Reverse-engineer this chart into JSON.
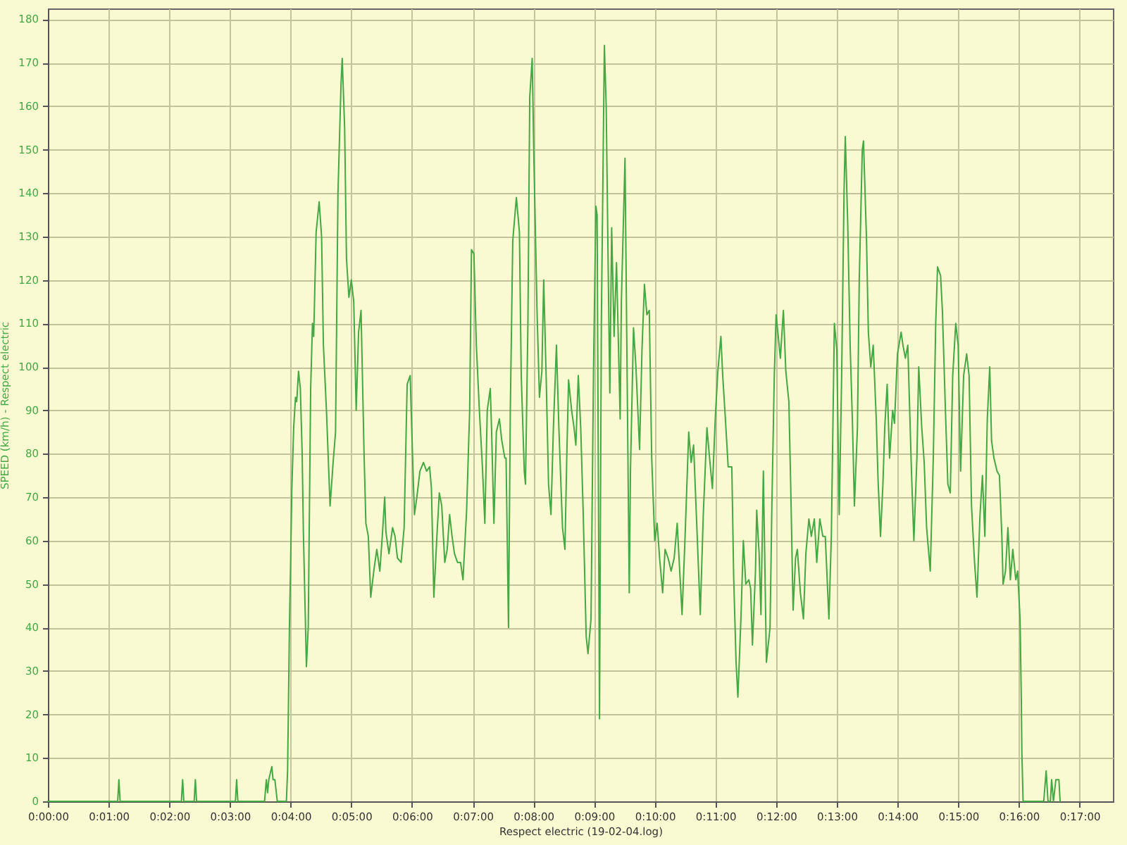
{
  "chart_data": {
    "type": "line",
    "xlabel": "Respect electric (19-02-04.log)",
    "ylabel": "SPEED (km/h) - Respect electric",
    "x": [
      0,
      1.15,
      1.17,
      1.19,
      2.2,
      2.22,
      2.24,
      2.41,
      2.43,
      2.45,
      3.09,
      3.11,
      3.13,
      3.57,
      3.6,
      3.62,
      3.64,
      3.69,
      3.71,
      3.74,
      3.78,
      3.93,
      3.95,
      3.98,
      4.0,
      4.02,
      4.05,
      4.08,
      4.1,
      4.13,
      4.16,
      4.19,
      4.21,
      4.26,
      4.29,
      4.33,
      4.36,
      4.38,
      4.42,
      4.47,
      4.51,
      4.54,
      4.59,
      4.65,
      4.7,
      4.74,
      4.78,
      4.83,
      4.85,
      4.89,
      4.92,
      4.96,
      5.0,
      5.04,
      5.08,
      5.12,
      5.16,
      5.21,
      5.24,
      5.28,
      5.32,
      5.37,
      5.42,
      5.47,
      5.51,
      5.55,
      5.57,
      5.62,
      5.68,
      5.72,
      5.76,
      5.82,
      5.87,
      5.92,
      5.97,
      6.01,
      6.04,
      6.08,
      6.13,
      6.19,
      6.24,
      6.29,
      6.32,
      6.36,
      6.41,
      6.45,
      6.49,
      6.54,
      6.58,
      6.62,
      6.66,
      6.7,
      6.75,
      6.8,
      6.84,
      6.9,
      6.95,
      6.98,
      7.02,
      7.06,
      7.11,
      7.16,
      7.2,
      7.24,
      7.29,
      7.31,
      7.35,
      7.39,
      7.44,
      7.48,
      7.53,
      7.55,
      7.59,
      7.62,
      7.66,
      7.72,
      7.77,
      7.8,
      7.85,
      7.87,
      7.91,
      7.94,
      7.98,
      8.01,
      8.06,
      8.1,
      8.14,
      8.17,
      8.21,
      8.25,
      8.29,
      8.33,
      8.38,
      8.42,
      8.48,
      8.52,
      8.55,
      8.58,
      8.63,
      8.67,
      8.7,
      8.74,
      8.78,
      8.82,
      8.87,
      8.9,
      8.95,
      8.99,
      9.03,
      9.05,
      9.09,
      9.12,
      9.17,
      9.2,
      9.24,
      9.26,
      9.29,
      9.33,
      9.37,
      9.43,
      9.45,
      9.51,
      9.54,
      9.58,
      9.6,
      9.65,
      9.69,
      9.75,
      9.79,
      9.83,
      9.87,
      9.91,
      9.95,
      10.0,
      10.04,
      10.08,
      10.13,
      10.17,
      10.22,
      10.27,
      10.32,
      10.37,
      10.4,
      10.45,
      10.5,
      10.56,
      10.6,
      10.64,
      10.7,
      10.75,
      10.8,
      10.86,
      10.91,
      10.95,
      11.0,
      11.04,
      11.09,
      11.12,
      11.16,
      11.21,
      11.27,
      11.3,
      11.34,
      11.37,
      11.42,
      11.46,
      11.5,
      11.55,
      11.58,
      11.61,
      11.66,
      11.68,
      11.72,
      11.75,
      11.79,
      11.84,
      11.9,
      11.93,
      11.97,
      12.0,
      12.07,
      12.12,
      12.16,
      12.21,
      12.24,
      12.28,
      12.32,
      12.35,
      12.4,
      12.45,
      12.49,
      12.54,
      12.58,
      12.63,
      12.67,
      12.72,
      12.77,
      12.81,
      12.87,
      12.91,
      12.96,
      13.0,
      13.04,
      13.08,
      13.12,
      13.14,
      13.18,
      13.22,
      13.26,
      13.29,
      13.34,
      13.37,
      13.42,
      13.44,
      13.49,
      13.52,
      13.56,
      13.6,
      13.65,
      13.68,
      13.72,
      13.76,
      13.79,
      13.83,
      13.87,
      13.92,
      13.95,
      14.0,
      14.06,
      14.09,
      14.13,
      14.17,
      14.23,
      14.27,
      14.32,
      14.35,
      14.4,
      14.44,
      14.48,
      14.54,
      14.59,
      14.63,
      14.66,
      14.71,
      14.74,
      14.79,
      14.83,
      14.87,
      14.91,
      14.96,
      15.0,
      15.04,
      15.09,
      15.14,
      15.18,
      15.22,
      15.27,
      15.31,
      15.36,
      15.4,
      15.44,
      15.48,
      15.52,
      15.55,
      15.59,
      15.64,
      15.68,
      15.72,
      15.74,
      15.78,
      15.82,
      15.86,
      15.9,
      15.95,
      15.98,
      16.02,
      16.04,
      16.05,
      16.07,
      16.41,
      16.45,
      16.48,
      16.52,
      16.54,
      16.57,
      16.61,
      16.66,
      16.68
    ],
    "series": [
      {
        "color": "#45a845",
        "values": [
          0,
          0,
          5,
          0,
          0,
          5,
          0,
          0,
          5,
          0,
          0,
          5,
          0,
          0,
          5,
          2,
          5,
          8,
          5,
          5,
          0,
          0,
          7,
          40,
          55,
          72,
          86,
          93,
          92,
          99,
          95,
          80,
          62,
          31,
          40,
          95,
          110,
          107,
          131,
          138,
          130,
          105,
          90,
          68,
          78,
          85,
          140,
          165,
          171,
          155,
          125,
          116,
          120,
          115,
          90,
          108,
          113,
          80,
          64,
          61,
          47,
          53,
          58,
          53,
          61,
          70,
          62,
          57,
          63,
          61,
          56,
          55,
          63,
          96,
          98,
          79,
          66,
          70,
          76,
          78,
          76,
          77,
          72,
          47,
          61,
          71,
          68,
          55,
          58,
          66,
          61,
          57,
          55,
          55,
          51,
          67,
          90,
          127,
          126,
          105,
          90,
          77,
          64,
          90,
          95,
          86,
          64,
          85,
          88,
          83,
          79,
          79,
          40,
          90,
          129,
          139,
          131,
          98,
          76,
          73,
          110,
          162,
          171,
          147,
          113,
          93,
          99,
          120,
          98,
          73,
          66,
          86,
          105,
          86,
          63,
          58,
          79,
          97,
          90,
          86,
          82,
          98,
          86,
          67,
          38,
          34,
          42,
          98,
          137,
          135,
          19,
          110,
          174,
          160,
          115,
          94,
          132,
          107,
          124,
          88,
          115,
          148,
          105,
          48,
          76,
          109,
          100,
          81,
          104,
          119,
          112,
          113,
          79,
          60,
          64,
          56,
          48,
          58,
          56,
          53,
          56,
          64,
          56,
          43,
          61,
          85,
          78,
          82,
          61,
          43,
          66,
          86,
          78,
          72,
          89,
          99,
          107,
          98,
          89,
          77,
          77,
          52,
          32,
          24,
          42,
          60,
          50,
          51,
          49,
          36,
          53,
          67,
          57,
          43,
          76,
          32,
          40,
          68,
          98,
          112,
          102,
          113,
          99,
          92,
          73,
          44,
          56,
          58,
          48,
          42,
          57,
          65,
          61,
          65,
          55,
          65,
          61,
          61,
          42,
          61,
          110,
          104,
          66,
          98,
          141,
          153,
          133,
          105,
          86,
          68,
          86,
          120,
          150,
          152,
          129,
          108,
          100,
          105,
          88,
          74,
          61,
          73,
          86,
          96,
          79,
          90,
          87,
          103,
          108,
          105,
          102,
          105,
          76,
          60,
          79,
          100,
          86,
          78,
          63,
          53,
          79,
          110,
          123,
          121,
          113,
          90,
          73,
          71,
          98,
          110,
          105,
          76,
          98,
          103,
          98,
          68,
          55,
          47,
          66,
          75,
          61,
          88,
          100,
          83,
          79,
          76,
          75,
          61,
          50,
          53,
          63,
          51,
          58,
          51,
          53,
          42,
          24,
          11,
          0,
          0,
          7,
          0,
          0,
          5,
          0,
          5,
          5,
          0
        ]
      }
    ],
    "xlim": [
      0,
      17.55
    ],
    "ylim": [
      0,
      182.5
    ],
    "xticks": [
      {
        "value": 0,
        "label": "0:00:00"
      },
      {
        "value": 1,
        "label": "0:01:00"
      },
      {
        "value": 2,
        "label": "0:02:00"
      },
      {
        "value": 3,
        "label": "0:03:00"
      },
      {
        "value": 4,
        "label": "0:04:00"
      },
      {
        "value": 5,
        "label": "0:05:00"
      },
      {
        "value": 6,
        "label": "0:06:00"
      },
      {
        "value": 7,
        "label": "0:07:00"
      },
      {
        "value": 8,
        "label": "0:08:00"
      },
      {
        "value": 9,
        "label": "0:09:00"
      },
      {
        "value": 10,
        "label": "0:10:00"
      },
      {
        "value": 11,
        "label": "0:11:00"
      },
      {
        "value": 12,
        "label": "0:12:00"
      },
      {
        "value": 13,
        "label": "0:13:00"
      },
      {
        "value": 14,
        "label": "0:14:00"
      },
      {
        "value": 15,
        "label": "0:15:00"
      },
      {
        "value": 16,
        "label": "0:16:00"
      },
      {
        "value": 17,
        "label": "0:17:00"
      }
    ],
    "yticks": [
      0,
      10,
      20,
      30,
      40,
      50,
      60,
      70,
      80,
      90,
      100,
      110,
      120,
      130,
      140,
      150,
      160,
      170,
      180
    ],
    "grid": true
  }
}
